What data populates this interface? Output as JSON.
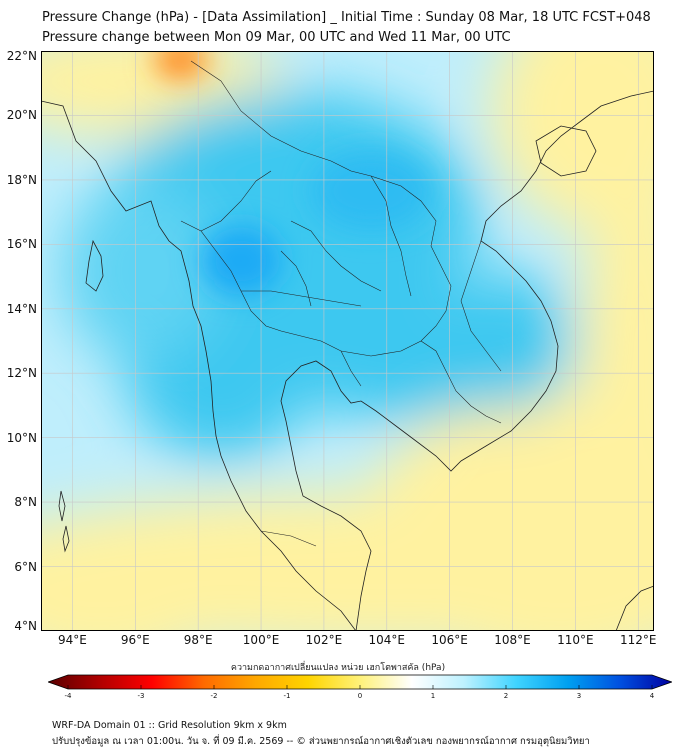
{
  "title_line1": "Pressure Change (hPa) - [Data Assimilation] _ Initial Time : Sunday 08 Mar, 18 UTC FCST+048",
  "title_line2": "Pressure change between Mon 09 Mar, 00 UTC and Wed 11 Mar, 00 UTC",
  "map": {
    "lat_range": [
      4,
      22
    ],
    "lon_range": [
      93,
      112.5
    ],
    "lat_ticks": [
      "22°N",
      "20°N",
      "18°N",
      "16°N",
      "14°N",
      "12°N",
      "10°N",
      "8°N",
      "6°N",
      "4°N"
    ],
    "lat_values": [
      22,
      20,
      18,
      16,
      14,
      12,
      10,
      8,
      6,
      4
    ],
    "lon_ticks": [
      "94°E",
      "96°E",
      "98°E",
      "100°E",
      "102°E",
      "104°E",
      "106°E",
      "108°E",
      "110°E",
      "112°E"
    ],
    "lon_values": [
      94,
      96,
      98,
      100,
      102,
      104,
      106,
      108,
      110,
      112
    ],
    "gridlines": true,
    "colors": {
      "positive_strong": "#1e90ff",
      "positive_mid": "#3cc8f0",
      "positive_weak": "#bfeefc",
      "neutral": "#ffffff",
      "negative_weak": "#fff2a0",
      "negative_mid": "#ffd23c",
      "negative_strong": "#ff7a1a",
      "coastline": "#222222"
    }
  },
  "colorbar": {
    "label": "ความกดอากาศเปลี่ยนแปลง หน่วย เฮกโตพาสคัล (hPa)",
    "min": -4,
    "max": 4,
    "ticks": [
      "-4",
      "-3",
      "-2",
      "-1",
      "0",
      "1",
      "2",
      "3",
      "4"
    ],
    "tick_values": [
      -4,
      -3,
      -2,
      -1,
      0,
      1,
      2,
      3,
      4
    ],
    "stops": [
      "#5a0000",
      "#b00000",
      "#ff0000",
      "#ff6a00",
      "#ffa800",
      "#ffd400",
      "#fff27a",
      "#ffffff",
      "#bdf1ff",
      "#40d4ff",
      "#00a0f0",
      "#0050e0",
      "#0000a0"
    ]
  },
  "footer_line1": "WRF-DA Domain 01 :: Grid Resolution 9km x 9km",
  "footer_line2": "ปรับปรุงข้อมูล ณ เวลา 01:00น. วัน จ. ที่ 09 มี.ค. 2569 -- © ส่วนพยากรณ์อากาศเชิงตัวเลข กองพยากรณ์อากาศ กรมอุตุนิยมวิทยา"
}
